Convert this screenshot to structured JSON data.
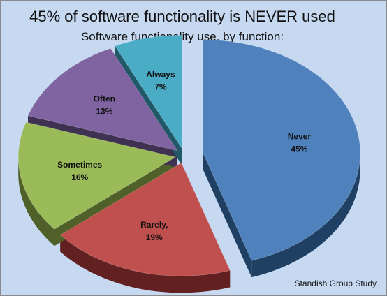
{
  "chart_data": {
    "type": "pie",
    "title": "45% of software functionality is NEVER used",
    "subtitle": "Software functionality use, by function:",
    "source": "Standish Group Study",
    "slices": [
      {
        "name": "Never",
        "value": 45,
        "label": "45%",
        "color": "#4f81bd",
        "side": "#1f3f63"
      },
      {
        "name": "Rarely,",
        "value": 19,
        "label": "19%",
        "color": "#c0504d",
        "side": "#632020"
      },
      {
        "name": "Sometimes",
        "value": 16,
        "label": "16%",
        "color": "#9bbb59",
        "side": "#4f6128"
      },
      {
        "name": "Often",
        "value": 13,
        "label": "13%",
        "color": "#8064a2",
        "side": "#3f3151"
      },
      {
        "name": "Always",
        "value": 7,
        "label": "7%",
        "color": "#4bacc6",
        "side": "#205867"
      }
    ],
    "exploded": "Never"
  }
}
